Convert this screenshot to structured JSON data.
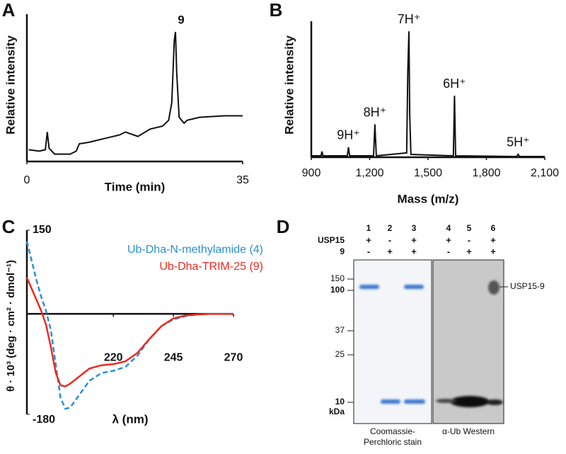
{
  "chart_data": [
    {
      "type": "line",
      "panel": "A",
      "y_label": "Relative intensity",
      "x_label": "Time (min)",
      "color": "#111111",
      "xlim": [
        0,
        35
      ],
      "xticks": [
        0,
        35
      ],
      "ylim": [
        0,
        100
      ],
      "x": [
        0.3,
        2,
        3,
        3.3,
        3.6,
        4.5,
        7,
        8,
        8.5,
        10,
        13,
        15,
        16,
        18,
        20,
        22,
        23,
        23.5,
        23.9,
        24.1,
        24.3,
        24.7,
        25.5,
        26,
        28,
        32,
        35
      ],
      "values": [
        8,
        7,
        8,
        20,
        9,
        5,
        5,
        7,
        12,
        13,
        16,
        18,
        20,
        17,
        22,
        24,
        28,
        40,
        82,
        88,
        60,
        30,
        26,
        28,
        30,
        31,
        31
      ],
      "annotations": [
        {
          "text": "9",
          "x": 24.1
        }
      ]
    },
    {
      "type": "line",
      "panel": "B",
      "y_label": "Relative intensity",
      "x_label": "Mass (m/z)",
      "color": "#111111",
      "xlim": [
        900,
        2100
      ],
      "xticks": [
        900,
        {
          "value": 1200,
          "label": "1,200"
        },
        {
          "value": 1500,
          "label": "1,500"
        },
        {
          "value": 1800,
          "label": "1,800"
        },
        {
          "value": 2100,
          "label": "2,100"
        }
      ],
      "ylim": [
        0,
        100
      ],
      "x": [
        900,
        950,
        955,
        960,
        1085,
        1091,
        1097,
        1220,
        1227,
        1234,
        1390,
        1396,
        1402,
        1406,
        1412,
        1630,
        1636,
        1642,
        1955,
        1963,
        1971,
        2100
      ],
      "values": [
        1,
        1,
        4,
        1,
        1,
        7,
        1,
        1,
        23,
        1,
        3,
        60,
        88,
        30,
        2,
        1,
        43,
        1,
        0.5,
        2,
        0.5,
        0.5
      ],
      "annotations": [
        {
          "text": "9H⁺",
          "x": 1091
        },
        {
          "text": "8H⁺",
          "x": 1227
        },
        {
          "text": "7H⁺",
          "x": 1402
        },
        {
          "text": "6H⁺",
          "x": 1636
        },
        {
          "text": "5H⁺",
          "x": 1963
        }
      ]
    },
    {
      "type": "line",
      "panel": "C",
      "y_label": "θ · 10³ (deg · cm² · dmol⁻¹)",
      "x_label": "λ (nm)",
      "xlim": [
        184,
        270
      ],
      "xticks": [
        220,
        245,
        270
      ],
      "ylim": [
        -180,
        150
      ],
      "yticks": [
        -180,
        150
      ],
      "x": [
        184,
        186,
        188,
        190,
        192,
        194,
        196,
        198,
        200,
        202,
        205,
        210,
        215,
        220,
        225,
        230,
        235,
        240,
        245,
        250,
        255,
        260,
        265,
        270
      ],
      "series": [
        {
          "name": "Ub-Dha-N-methylamide (4)",
          "color": "#2a8fd6",
          "dashed": true,
          "values": [
            130,
            95,
            60,
            30,
            5,
            -30,
            -90,
            -150,
            -170,
            -168,
            -150,
            -120,
            -106,
            -102,
            -95,
            -75,
            -45,
            -22,
            -10,
            -4,
            -1,
            0,
            0,
            0
          ]
        },
        {
          "name": "Ub-Dha-TRIM-25 (9)",
          "color": "#ee2a1f",
          "dashed": false,
          "values": [
            65,
            45,
            25,
            5,
            -20,
            -60,
            -105,
            -128,
            -130,
            -125,
            -115,
            -98,
            -92,
            -90,
            -85,
            -70,
            -45,
            -22,
            -8,
            -3,
            -1,
            0,
            0,
            0
          ]
        }
      ]
    }
  ],
  "gel": {
    "panel": "D",
    "lanes": [
      "1",
      "2",
      "3",
      "4",
      "5",
      "6"
    ],
    "rows": [
      {
        "label": "USP15",
        "signs": [
          "+",
          "-",
          "+",
          "+",
          "-",
          "+"
        ]
      },
      {
        "label": "9",
        "signs": [
          "-",
          "+",
          "+",
          "-",
          "+",
          "+"
        ]
      }
    ],
    "markers": [
      "150",
      "100",
      "37",
      "25",
      "10"
    ],
    "unit": "kDa",
    "band_label": "USP15-9",
    "captions": [
      [
        "Coomassie-",
        "Perchloric stain"
      ],
      [
        "α-Ub Western"
      ]
    ]
  }
}
